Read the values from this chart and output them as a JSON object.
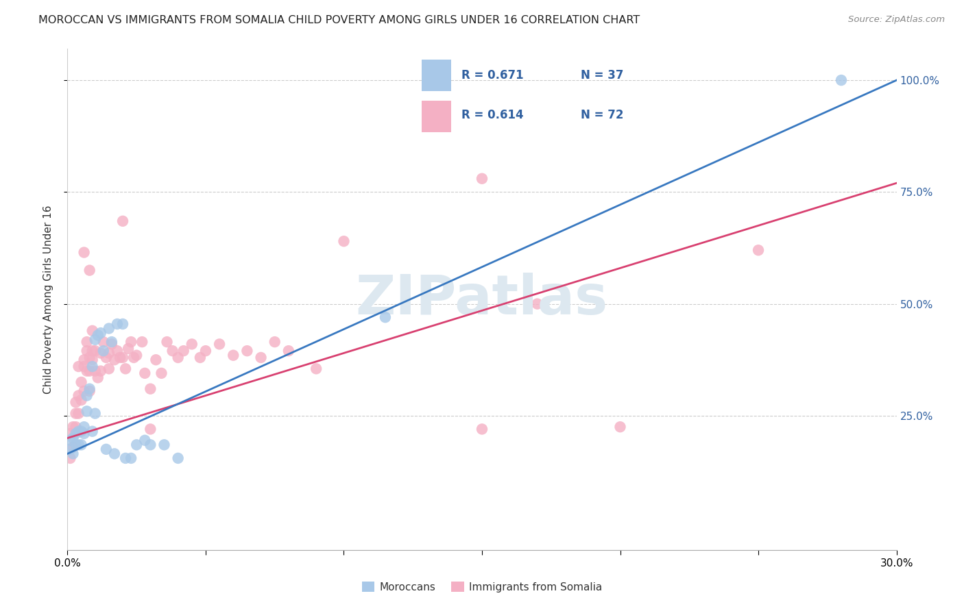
{
  "title": "MOROCCAN VS IMMIGRANTS FROM SOMALIA CHILD POVERTY AMONG GIRLS UNDER 16 CORRELATION CHART",
  "source": "Source: ZipAtlas.com",
  "ylabel": "Child Poverty Among Girls Under 16",
  "xlim": [
    0.0,
    0.3
  ],
  "ylim": [
    -0.05,
    1.07
  ],
  "ytick_vals": [
    0.25,
    0.5,
    0.75,
    1.0
  ],
  "ytick_labels": [
    "25.0%",
    "50.0%",
    "75.0%",
    "100.0%"
  ],
  "xtick_vals": [
    0.0,
    0.05,
    0.1,
    0.15,
    0.2,
    0.25,
    0.3
  ],
  "xtick_labels": [
    "0.0%",
    "",
    "",
    "",
    "",
    "",
    "30.0%"
  ],
  "legend_moroccan": "Moroccans",
  "legend_somalia": "Immigrants from Somalia",
  "moroccan_R": "R = 0.671",
  "moroccan_N": "N = 37",
  "somalia_R": "R = 0.614",
  "somalia_N": "N = 72",
  "moroccan_color": "#a8c8e8",
  "somalia_color": "#f4b0c4",
  "moroccan_line_color": "#3878c0",
  "somalia_line_color": "#d84070",
  "text_color": "#3060a0",
  "watermark": "ZIPatlas",
  "watermark_color": "#dde8f0",
  "background_color": "#ffffff",
  "moroccan_scatter_x": [
    0.001,
    0.001,
    0.002,
    0.002,
    0.003,
    0.003,
    0.004,
    0.004,
    0.005,
    0.005,
    0.006,
    0.006,
    0.007,
    0.007,
    0.008,
    0.009,
    0.009,
    0.01,
    0.01,
    0.011,
    0.012,
    0.013,
    0.014,
    0.015,
    0.016,
    0.017,
    0.018,
    0.02,
    0.021,
    0.023,
    0.025,
    0.028,
    0.03,
    0.035,
    0.04,
    0.28,
    0.115
  ],
  "moroccan_scatter_y": [
    0.195,
    0.175,
    0.2,
    0.165,
    0.21,
    0.185,
    0.215,
    0.185,
    0.215,
    0.185,
    0.225,
    0.21,
    0.295,
    0.26,
    0.31,
    0.215,
    0.36,
    0.42,
    0.255,
    0.43,
    0.435,
    0.395,
    0.175,
    0.445,
    0.415,
    0.165,
    0.455,
    0.455,
    0.155,
    0.155,
    0.185,
    0.195,
    0.185,
    0.185,
    0.155,
    1.0,
    0.47
  ],
  "somalia_scatter_x": [
    0.001,
    0.001,
    0.002,
    0.002,
    0.003,
    0.003,
    0.003,
    0.004,
    0.004,
    0.004,
    0.005,
    0.005,
    0.006,
    0.006,
    0.006,
    0.007,
    0.007,
    0.007,
    0.008,
    0.008,
    0.008,
    0.009,
    0.009,
    0.009,
    0.01,
    0.01,
    0.011,
    0.012,
    0.012,
    0.013,
    0.014,
    0.015,
    0.015,
    0.016,
    0.017,
    0.018,
    0.019,
    0.02,
    0.021,
    0.022,
    0.023,
    0.024,
    0.025,
    0.027,
    0.028,
    0.03,
    0.032,
    0.034,
    0.036,
    0.038,
    0.04,
    0.042,
    0.045,
    0.048,
    0.05,
    0.055,
    0.06,
    0.065,
    0.07,
    0.075,
    0.08,
    0.09,
    0.1,
    0.006,
    0.008,
    0.02,
    0.15,
    0.2,
    0.17,
    0.03,
    0.25,
    0.15
  ],
  "somalia_scatter_y": [
    0.155,
    0.21,
    0.225,
    0.18,
    0.255,
    0.225,
    0.28,
    0.295,
    0.255,
    0.36,
    0.325,
    0.285,
    0.36,
    0.375,
    0.305,
    0.395,
    0.35,
    0.415,
    0.38,
    0.35,
    0.305,
    0.395,
    0.375,
    0.44,
    0.395,
    0.35,
    0.335,
    0.35,
    0.39,
    0.415,
    0.38,
    0.39,
    0.355,
    0.41,
    0.375,
    0.395,
    0.38,
    0.38,
    0.355,
    0.4,
    0.415,
    0.38,
    0.385,
    0.415,
    0.345,
    0.22,
    0.375,
    0.345,
    0.415,
    0.395,
    0.38,
    0.395,
    0.41,
    0.38,
    0.395,
    0.41,
    0.385,
    0.395,
    0.38,
    0.415,
    0.395,
    0.355,
    0.64,
    0.615,
    0.575,
    0.685,
    0.22,
    0.225,
    0.5,
    0.31,
    0.62,
    0.78
  ],
  "moroccan_line_x": [
    0.0,
    0.3
  ],
  "moroccan_line_y": [
    0.165,
    1.0
  ],
  "somalia_line_x": [
    0.0,
    0.3
  ],
  "somalia_line_y": [
    0.2,
    0.77
  ]
}
